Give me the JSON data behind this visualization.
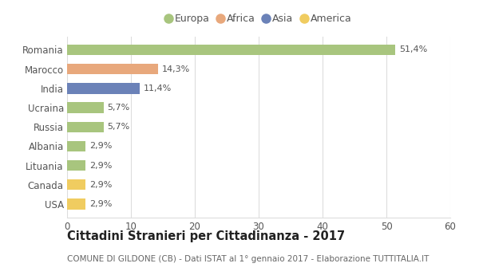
{
  "countries": [
    "Romania",
    "Marocco",
    "India",
    "Ucraina",
    "Russia",
    "Albania",
    "Lituania",
    "Canada",
    "USA"
  ],
  "values": [
    51.4,
    14.3,
    11.4,
    5.7,
    5.7,
    2.9,
    2.9,
    2.9,
    2.9
  ],
  "labels": [
    "51,4%",
    "14,3%",
    "11,4%",
    "5,7%",
    "5,7%",
    "2,9%",
    "2,9%",
    "2,9%",
    "2,9%"
  ],
  "colors": [
    "#a8c57e",
    "#e8a87c",
    "#6b82b8",
    "#a8c57e",
    "#a8c57e",
    "#a8c57e",
    "#a8c57e",
    "#f0cc60",
    "#f0cc60"
  ],
  "legend": [
    {
      "label": "Europa",
      "color": "#a8c57e"
    },
    {
      "label": "Africa",
      "color": "#e8a87c"
    },
    {
      "label": "Asia",
      "color": "#6b82b8"
    },
    {
      "label": "America",
      "color": "#f0cc60"
    }
  ],
  "xlim": [
    0,
    60
  ],
  "xticks": [
    0,
    10,
    20,
    30,
    40,
    50,
    60
  ],
  "title": "Cittadini Stranieri per Cittadinanza - 2017",
  "subtitle": "COMUNE DI GILDONE (CB) - Dati ISTAT al 1° gennaio 2017 - Elaborazione TUTTITALIA.IT",
  "bg_color": "#ffffff",
  "grid_color": "#dddddd",
  "bar_height": 0.55,
  "label_fontsize": 8.0,
  "tick_fontsize": 8.5,
  "legend_fontsize": 9.0,
  "title_fontsize": 10.5,
  "subtitle_fontsize": 7.5
}
